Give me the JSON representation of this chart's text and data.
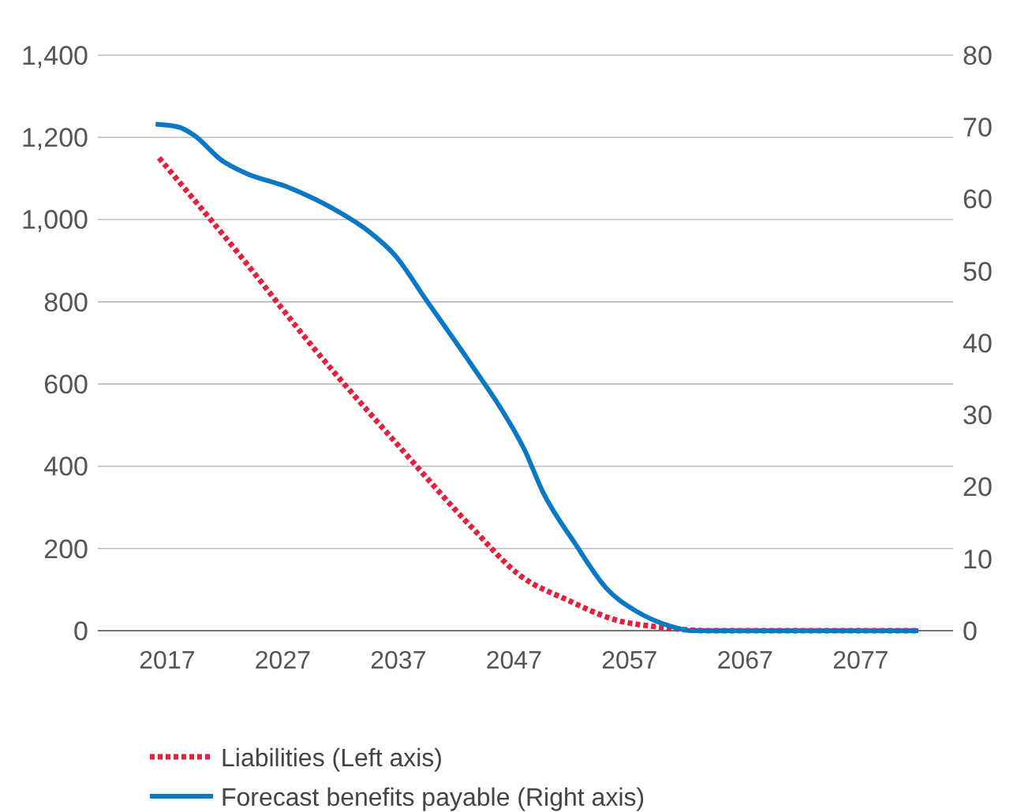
{
  "chart_data": {
    "type": "line",
    "xlim": [
      2011,
      2085
    ],
    "xticks": [
      2017,
      2027,
      2037,
      2047,
      2057,
      2067,
      2077
    ],
    "ylim": [
      0,
      1400
    ],
    "yticks": [
      {
        "value": 0,
        "label": "0"
      },
      {
        "value": 200,
        "label": "200"
      },
      {
        "value": 400,
        "label": "400"
      },
      {
        "value": 600,
        "label": "600"
      },
      {
        "value": 800,
        "label": "800"
      },
      {
        "value": 1000,
        "label": "1,000"
      },
      {
        "value": 1200,
        "label": "1,200"
      },
      {
        "value": 1400,
        "label": "1,400"
      }
    ],
    "y2lim": [
      0,
      80
    ],
    "y2ticks": [
      0,
      10,
      20,
      30,
      40,
      50,
      60,
      70,
      80
    ],
    "grid": "y",
    "legend": "bottom",
    "series": [
      {
        "name": "Liabilities (Left axis)",
        "color": "#e4203c",
        "line_style": "dotted",
        "x": [
          2016.3,
          2023.1,
          2029.9,
          2036.7,
          2043.4,
          2047.5,
          2051.6,
          2055.7,
          2059.8,
          2064,
          2082
        ],
        "values": [
          1150,
          920,
          680,
          460,
          250,
          135,
          75,
          27,
          8,
          0,
          0
        ]
      },
      {
        "name": "Forecast benefits payable (Right axis)",
        "color": "#0a78c2",
        "line_style": "solid",
        "axis": "y2",
        "x": [
          2016,
          2018,
          2019.3,
          2021.7,
          2023.8,
          2027.2,
          2031.2,
          2034.6,
          2036.7,
          2039.4,
          2043.4,
          2046.1,
          2047.9,
          2049.5,
          2052.3,
          2055,
          2057.7,
          2060.4,
          2062.5,
          2082
        ],
        "values": [
          70.4,
          70,
          68.9,
          65.4,
          63.6,
          61.8,
          58.8,
          55.3,
          52.2,
          46,
          36.8,
          30.3,
          25.2,
          19.3,
          12.1,
          5.9,
          2.6,
          0.7,
          0,
          0
        ]
      }
    ]
  }
}
